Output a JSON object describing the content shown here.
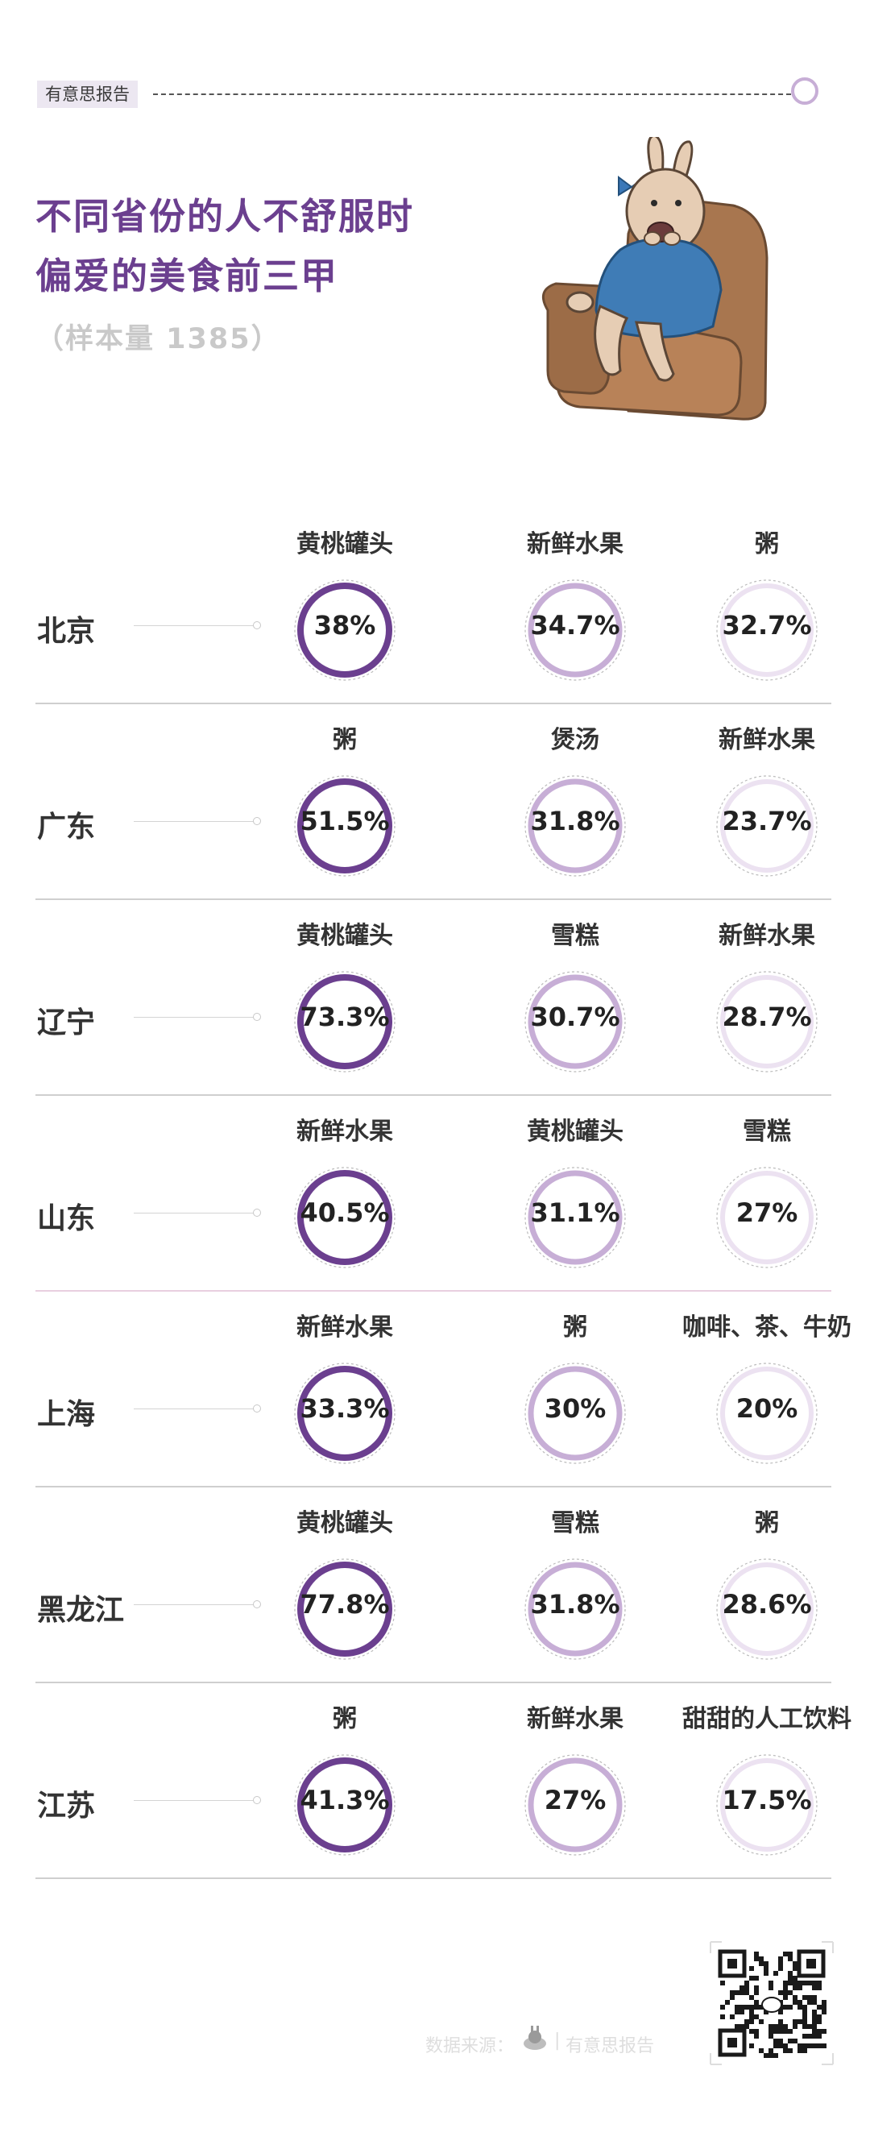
{
  "header": {
    "brand_tag": "有意思报告",
    "title_line1": "不同省份的人不舒服时",
    "title_line2": "偏爱的美食前三甲",
    "sample_size": "（样本量 1385）"
  },
  "colors": {
    "rank1": "#6b3f8f",
    "rank2": "#c7aed6",
    "rank3": "#ece2f1",
    "title": "#6b3f8f"
  },
  "chart_data": {
    "type": "table",
    "title": "不同省份的人不舒服时偏爱的美食前三甲",
    "subtitle": "（样本量 1385）",
    "rows": [
      {
        "province": "北京",
        "items": [
          {
            "food": "黄桃罐头",
            "pct_label": "38%",
            "value": 38
          },
          {
            "food": "新鲜水果",
            "pct_label": "34.7%",
            "value": 34.7
          },
          {
            "food": "粥",
            "pct_label": "32.7%",
            "value": 32.7
          }
        ]
      },
      {
        "province": "广东",
        "items": [
          {
            "food": "粥",
            "pct_label": "51.5%",
            "value": 51.5
          },
          {
            "food": "煲汤",
            "pct_label": "31.8%",
            "value": 31.8
          },
          {
            "food": "新鲜水果",
            "pct_label": "23.7%",
            "value": 23.7
          }
        ]
      },
      {
        "province": "辽宁",
        "items": [
          {
            "food": "黄桃罐头",
            "pct_label": "73.3%",
            "value": 73.3
          },
          {
            "food": "雪糕",
            "pct_label": "30.7%",
            "value": 30.7
          },
          {
            "food": "新鲜水果",
            "pct_label": "28.7%",
            "value": 28.7
          }
        ]
      },
      {
        "province": "山东",
        "items": [
          {
            "food": "新鲜水果",
            "pct_label": "40.5%",
            "value": 40.5
          },
          {
            "food": "黄桃罐头",
            "pct_label": "31.1%",
            "value": 31.1
          },
          {
            "food": "雪糕",
            "pct_label": "27%",
            "value": 27
          }
        ]
      },
      {
        "province": "上海",
        "items": [
          {
            "food": "新鲜水果",
            "pct_label": "33.3%",
            "value": 33.3
          },
          {
            "food": "粥",
            "pct_label": "30%",
            "value": 30
          },
          {
            "food": "咖啡、茶、牛奶",
            "pct_label": "20%",
            "value": 20
          }
        ]
      },
      {
        "province": "黑龙江",
        "items": [
          {
            "food": "黄桃罐头",
            "pct_label": "77.8%",
            "value": 77.8
          },
          {
            "food": "雪糕",
            "pct_label": "31.8%",
            "value": 31.8
          },
          {
            "food": "粥",
            "pct_label": "28.6%",
            "value": 28.6
          }
        ]
      },
      {
        "province": "江苏",
        "items": [
          {
            "food": "粥",
            "pct_label": "41.3%",
            "value": 41.3
          },
          {
            "food": "新鲜水果",
            "pct_label": "27%",
            "value": 27
          },
          {
            "food": "甜甜的人工饮料",
            "pct_label": "17.5%",
            "value": 17.5
          }
        ]
      }
    ]
  },
  "footer": {
    "source_label": "数据来源：",
    "separator": "|",
    "brand": "有意思报告"
  }
}
